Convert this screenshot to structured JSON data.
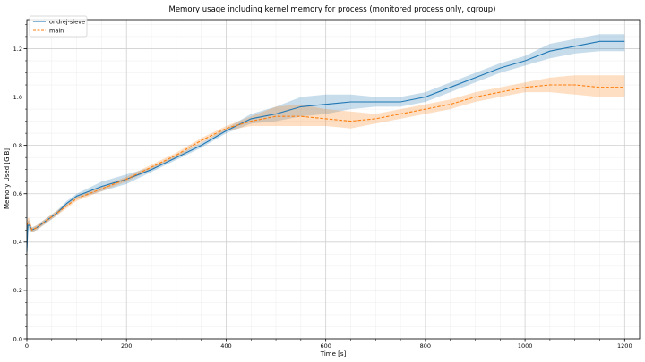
{
  "chart_data": {
    "type": "line",
    "title": "Memory usage including kernel memory for process (monitored process only, cgroup)",
    "xlabel": "Time [s]",
    "ylabel": "Memory Used [GiB]",
    "xlim": [
      0,
      1230
    ],
    "ylim": [
      0.0,
      1.32
    ],
    "xticks": [
      0,
      200,
      400,
      600,
      800,
      1000,
      1200
    ],
    "yticks": [
      0.0,
      0.2,
      0.4,
      0.6,
      0.8,
      1.0,
      1.2
    ],
    "xtick_labels": [
      "0",
      "200",
      "400",
      "600",
      "800",
      "1000",
      "1200"
    ],
    "ytick_labels": [
      "0.0",
      "0.2",
      "0.4",
      "0.6",
      "0.8",
      "1.0",
      "1.2"
    ],
    "grid": true,
    "legend_position": "top-left",
    "series": [
      {
        "name": "ondrej-sieve",
        "color": "#1f77b4",
        "line_style": "solid",
        "x": [
          0,
          2,
          5,
          10,
          20,
          40,
          60,
          80,
          100,
          150,
          200,
          250,
          300,
          350,
          400,
          450,
          500,
          550,
          600,
          650,
          700,
          750,
          800,
          850,
          900,
          950,
          1000,
          1050,
          1100,
          1150,
          1200
        ],
        "y": [
          0.36,
          0.47,
          0.47,
          0.45,
          0.46,
          0.49,
          0.52,
          0.56,
          0.59,
          0.63,
          0.66,
          0.7,
          0.75,
          0.8,
          0.86,
          0.91,
          0.93,
          0.96,
          0.97,
          0.98,
          0.98,
          0.98,
          1.0,
          1.04,
          1.08,
          1.12,
          1.15,
          1.19,
          1.21,
          1.23,
          1.23
        ],
        "band_low": [
          0.33,
          0.45,
          0.45,
          0.44,
          0.45,
          0.48,
          0.51,
          0.55,
          0.58,
          0.61,
          0.64,
          0.69,
          0.74,
          0.79,
          0.85,
          0.89,
          0.9,
          0.92,
          0.93,
          0.95,
          0.96,
          0.96,
          0.98,
          1.02,
          1.06,
          1.1,
          1.13,
          1.16,
          1.18,
          1.19,
          1.19
        ],
        "band_high": [
          0.39,
          0.49,
          0.49,
          0.46,
          0.47,
          0.5,
          0.53,
          0.57,
          0.6,
          0.65,
          0.68,
          0.71,
          0.76,
          0.81,
          0.87,
          0.93,
          0.96,
          1.0,
          1.01,
          1.01,
          1.0,
          1.0,
          1.02,
          1.06,
          1.1,
          1.14,
          1.17,
          1.22,
          1.24,
          1.26,
          1.26
        ]
      },
      {
        "name": "main",
        "color": "#ff7f0e",
        "line_style": "dashed",
        "x": [
          0,
          2,
          5,
          10,
          20,
          40,
          60,
          80,
          100,
          150,
          200,
          250,
          300,
          350,
          400,
          450,
          500,
          550,
          600,
          650,
          700,
          750,
          800,
          850,
          900,
          950,
          1000,
          1050,
          1100,
          1150,
          1200
        ],
        "y": [
          0.47,
          0.48,
          0.48,
          0.45,
          0.46,
          0.49,
          0.52,
          0.55,
          0.58,
          0.62,
          0.66,
          0.71,
          0.76,
          0.82,
          0.87,
          0.9,
          0.92,
          0.92,
          0.91,
          0.9,
          0.91,
          0.93,
          0.95,
          0.97,
          1.0,
          1.02,
          1.04,
          1.05,
          1.05,
          1.04,
          1.04
        ],
        "band_low": [
          0.45,
          0.46,
          0.46,
          0.44,
          0.45,
          0.48,
          0.51,
          0.54,
          0.57,
          0.61,
          0.65,
          0.7,
          0.75,
          0.81,
          0.86,
          0.88,
          0.88,
          0.88,
          0.88,
          0.87,
          0.89,
          0.91,
          0.93,
          0.95,
          0.98,
          1.0,
          1.02,
          1.02,
          1.01,
          1.0,
          1.0
        ],
        "band_high": [
          0.49,
          0.5,
          0.5,
          0.46,
          0.47,
          0.5,
          0.53,
          0.56,
          0.59,
          0.63,
          0.67,
          0.72,
          0.77,
          0.83,
          0.88,
          0.92,
          0.96,
          0.97,
          0.95,
          0.94,
          0.93,
          0.95,
          0.97,
          0.99,
          1.02,
          1.04,
          1.06,
          1.08,
          1.09,
          1.09,
          1.09
        ]
      }
    ]
  }
}
